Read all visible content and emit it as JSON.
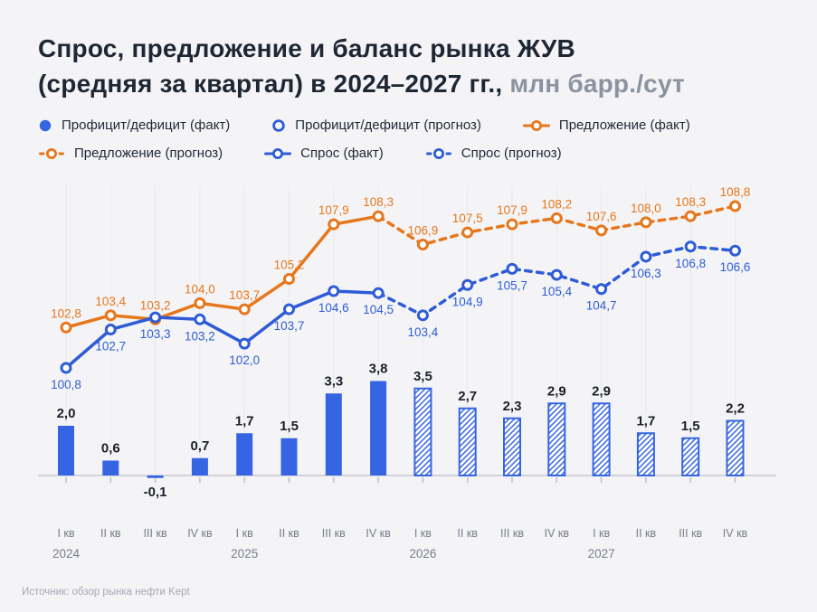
{
  "header": {
    "title_line1": "Спрос, предложение и баланс рынка ЖУВ",
    "title_line2_dark": "(средняя за квартал) в 2024–2027 гг.,",
    "title_line2_unit": "млн барр./сут"
  },
  "legend": [
    {
      "label": "Профицит/дефицит (факт)",
      "marker": "filled-circle",
      "color": "#3565e3"
    },
    {
      "label": "Профицит/дефицит (прогноз)",
      "marker": "open-circle",
      "color": "#2e5cd6"
    },
    {
      "label": "Предложение (факт)",
      "marker": "line-circle",
      "color": "#e7771c"
    },
    {
      "label": "Предложение (прогноз)",
      "marker": "dash-circle",
      "color": "#e7771c"
    },
    {
      "label": "Спрос (факт)",
      "marker": "line-circle",
      "color": "#2e5cd6"
    },
    {
      "label": "Спрос (прогноз)",
      "marker": "dash-circle",
      "color": "#2e5cd6"
    }
  ],
  "footer": {
    "source": "Источник: обзор рынка нефти Kept"
  },
  "colors": {
    "background": "#f4f4f6",
    "bar_blue": "#3565e3",
    "line_blue": "#2e5cd6",
    "line_orange": "#e7771c",
    "bar_label": "#1a1f29",
    "grid": "#e8e9ec",
    "axis": "#c7cad1",
    "tick": "#b8bcc5",
    "axis_label": "#767d8a"
  },
  "chart_data": {
    "type": "combo-bar-line",
    "title": "Спрос, предложение и баланс рынка ЖУВ (средняя за квартал) в 2024–2027 гг.",
    "ylabel": "млн барр./сут",
    "grid": "vertical",
    "legend_position": "top",
    "value_format": "comma-decimal",
    "quarters": [
      "I кв",
      "II кв",
      "III кв",
      "IV кв",
      "I кв",
      "II кв",
      "III кв",
      "IV кв",
      "I кв",
      "II кв",
      "III кв",
      "IV кв",
      "I кв",
      "II кв",
      "III кв",
      "IV кв"
    ],
    "year_groups": [
      {
        "label": "2024",
        "index": 0
      },
      {
        "label": "2025",
        "index": 4
      },
      {
        "label": "2026",
        "index": 8
      },
      {
        "label": "2027",
        "index": 12
      }
    ],
    "forecast_start_index": 8,
    "series": [
      {
        "name": "Профицит/дефицит",
        "type": "bar",
        "values": [
          2.0,
          0.6,
          -0.1,
          0.7,
          1.7,
          1.5,
          3.3,
          3.8,
          3.5,
          2.7,
          2.3,
          2.9,
          2.9,
          1.7,
          1.5,
          2.2
        ]
      },
      {
        "name": "Предложение",
        "type": "line",
        "values": [
          102.8,
          103.4,
          103.2,
          104.0,
          103.7,
          105.2,
          107.9,
          108.3,
          106.9,
          107.5,
          107.9,
          108.2,
          107.6,
          108.0,
          108.3,
          108.8
        ]
      },
      {
        "name": "Спрос",
        "type": "line",
        "values": [
          100.8,
          102.7,
          103.3,
          103.2,
          102.0,
          103.7,
          104.6,
          104.5,
          103.4,
          104.9,
          105.7,
          105.4,
          104.7,
          106.3,
          106.8,
          106.6
        ]
      }
    ]
  }
}
